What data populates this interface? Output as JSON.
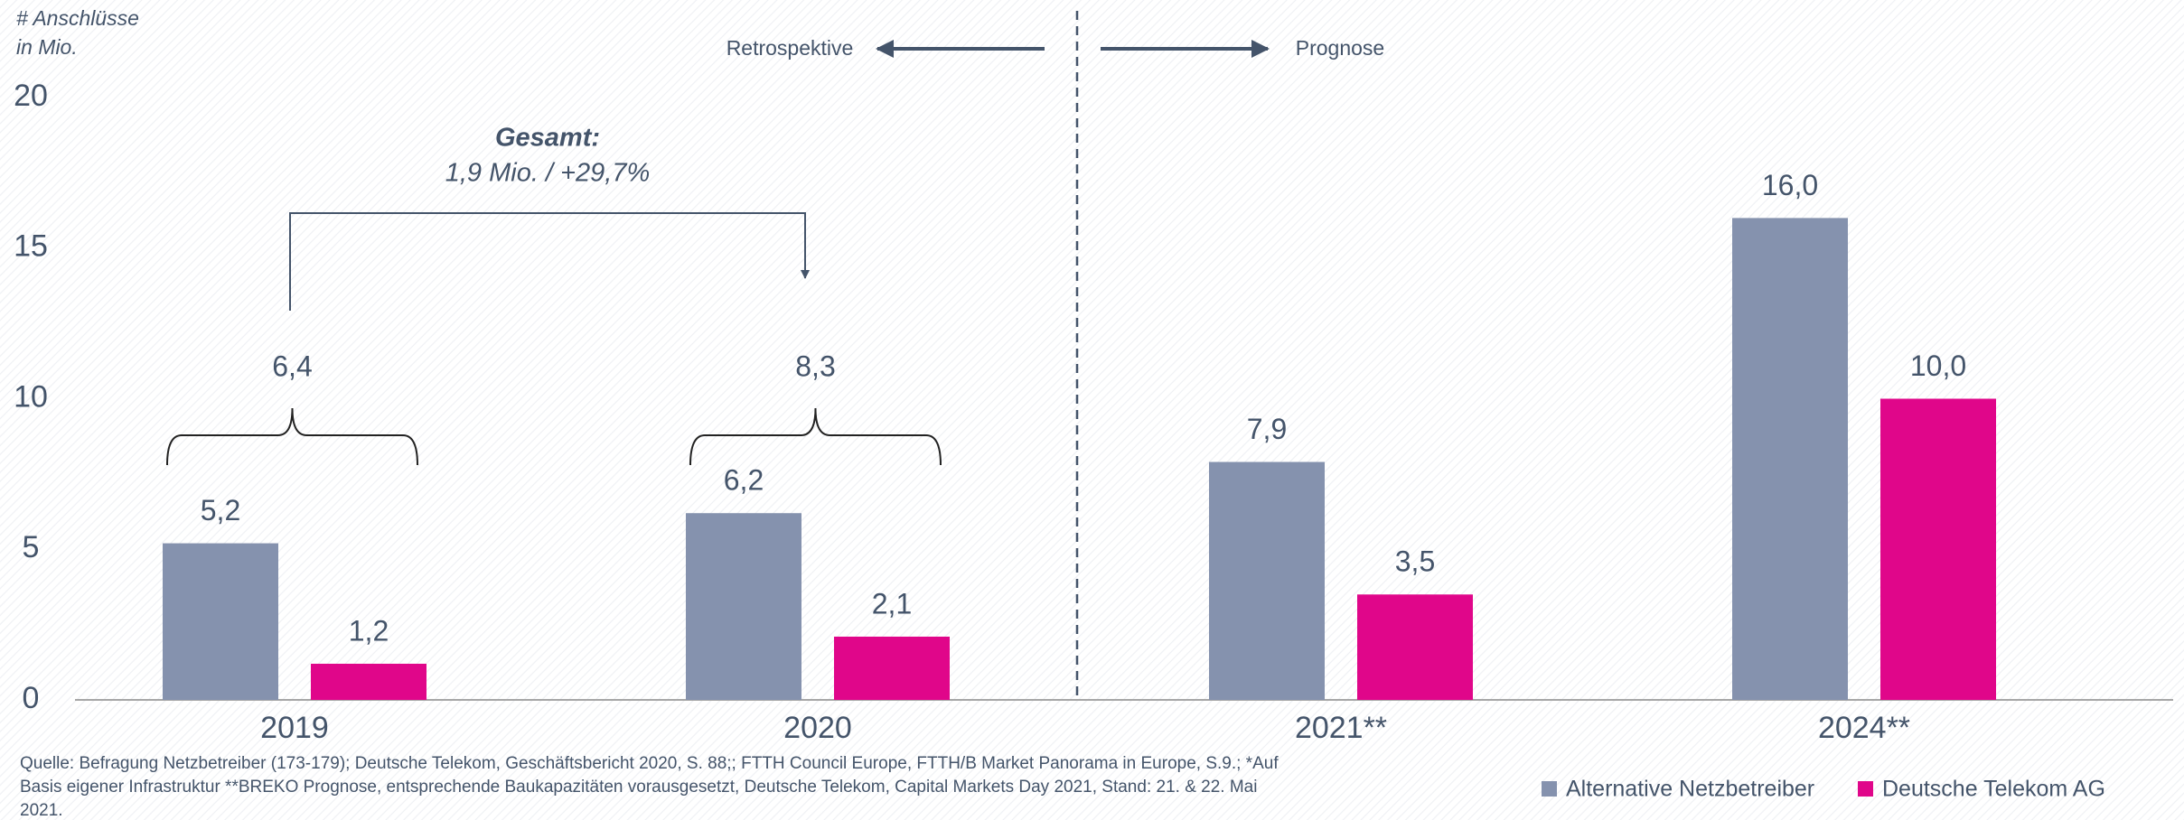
{
  "chart_data": {
    "type": "bar",
    "ylabel": [
      "# Anschlüsse",
      "in Mio."
    ],
    "categories": [
      "2019",
      "2020",
      "2021**",
      "2024**"
    ],
    "series": [
      {
        "name": "Alternative Netzbetreiber",
        "color": "#8592ae",
        "values": [
          5.2,
          6.2,
          7.9,
          16.0
        ],
        "value_labels": [
          "5,2",
          "6,2",
          "7,9",
          "16,0"
        ]
      },
      {
        "name": "Deutsche Telekom AG",
        "color": "#e0068a",
        "values": [
          1.2,
          2.1,
          3.5,
          10.0
        ],
        "value_labels": [
          "1,2",
          "2,1",
          "3,5",
          "10,0"
        ]
      }
    ],
    "group_totals": {
      "values": [
        6.4,
        8.3
      ],
      "value_labels": [
        "6,4",
        "8,3"
      ]
    },
    "annotations": {
      "retrospective": "Retrospektive",
      "forecast": "Prognose",
      "total_title": "Gesamt:",
      "total_text": "1,9 Mio. / +29,7%"
    },
    "ylim": [
      0,
      20
    ],
    "yticks": [
      0,
      5,
      10,
      15,
      20
    ],
    "grid": false,
    "legend": "bottom-right",
    "source": [
      "Quelle: Befragung Netzbetreiber (173-179); Deutsche Telekom, Geschäftsbericht 2020, S. 88;; FTTH Council Europe, FTTH/B Market Panorama in Europe, S.9.; *Auf",
      "Basis eigener Infrastruktur **BREKO Prognose, entsprechende Baukapazitäten vorausgesetzt, Deutsche Telekom, Capital Markets Day 2021, Stand: 21. & 22. Mai",
      "2021."
    ]
  }
}
